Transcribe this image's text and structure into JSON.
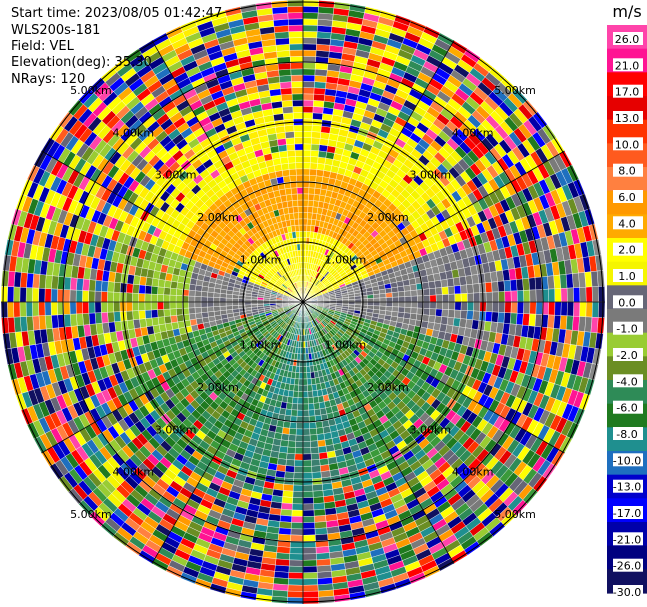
{
  "header": {
    "start_time": "Start time: 2023/08/05 01:42:47",
    "instrument": "WLS200s-181",
    "field": "Field: VEL",
    "elevation": "Elevation(deg): 35.30",
    "nrays": "NRays: 120"
  },
  "range_rings": {
    "labels": [
      "1.00km",
      "2.00km",
      "3.00km",
      "4.00km",
      "5.00km"
    ]
  },
  "colorbar": {
    "unit": "m/s",
    "ticks": [
      "26.0",
      "21.0",
      "17.0",
      "13.0",
      "10.0",
      "8.0",
      "6.0",
      "4.0",
      "2.0",
      "1.0",
      "0.0",
      "-1.0",
      "-2.0",
      "-4.0",
      "-6.0",
      "-8.0",
      "-10.0",
      "-13.0",
      "-17.0",
      "-21.0",
      "-26.0",
      "-30.0"
    ],
    "colors": [
      "#ff44aa",
      "#ff1493",
      "#ff0000",
      "#e60000",
      "#ff3300",
      "#ff5a1e",
      "#ff8040",
      "#ff9900",
      "#ffaa00",
      "#ffff00",
      "#f5f500",
      "#666677",
      "#7a7a7a",
      "#99cc33",
      "#6b8e23",
      "#2e8b57",
      "#1f7a1f",
      "#1f8f8f",
      "#1e6fbf",
      "#0000cc",
      "#0000ff",
      "#0000aa",
      "#000080",
      "#101060"
    ]
  },
  "chart_data": {
    "type": "ppi",
    "field": "VEL",
    "unit": "m/s",
    "elevation_deg": 35.3,
    "nrays": 120,
    "range_rings_km": [
      1,
      2,
      3,
      4,
      5
    ],
    "radial_velocity_pattern": {
      "north_sector": "positive (2 to 6 m/s, yellow/orange)",
      "east_sector": "near zero (grey)",
      "south_sector": "negative (-2 to -8 m/s, green/teal)",
      "west_sector": "near zero to slightly negative (grey/olive)",
      "outer_ranges": "noisy, mixed colors"
    }
  }
}
